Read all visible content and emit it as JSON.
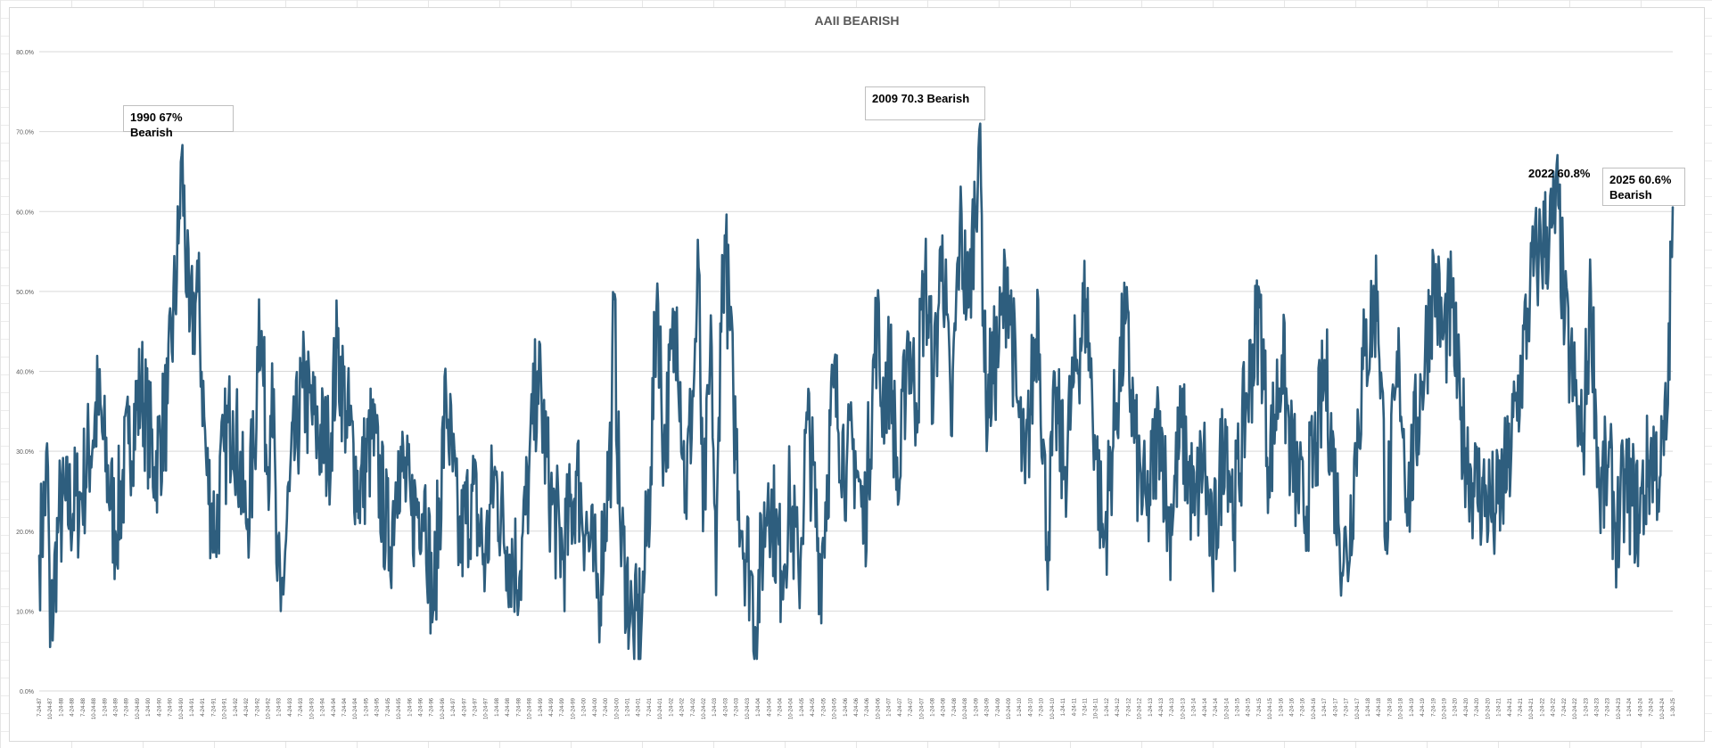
{
  "chart_data": {
    "type": "line",
    "title": "AAII BEARISH",
    "xlabel": "",
    "ylabel": "",
    "ylim": [
      0,
      80
    ],
    "y_tick_labels": [
      "0.0%",
      "10.0%",
      "20.0%",
      "30.0%",
      "40.0%",
      "50.0%",
      "60.0%",
      "70.0%",
      "80.0%"
    ],
    "x_start": "7-24-87",
    "x_end": "1-30-25",
    "x_tick_labels": [
      "7-24-87",
      "10-24-87",
      "1-24-88",
      "4-24-88",
      "7-24-88",
      "10-24-88",
      "1-24-89",
      "4-24-89",
      "7-24-89",
      "10-24-89",
      "1-24-90",
      "4-24-90",
      "7-24-90",
      "10-24-90",
      "1-24-91",
      "4-24-91",
      "7-24-91",
      "10-24-91",
      "1-24-92",
      "4-24-92",
      "7-24-92",
      "10-24-92",
      "1-24-93",
      "4-24-93",
      "7-24-93",
      "10-24-93",
      "1-24-94",
      "4-24-94",
      "7-24-94",
      "10-24-94",
      "1-24-95",
      "4-24-95",
      "7-24-95",
      "10-24-95",
      "1-24-96",
      "4-24-96",
      "7-24-96",
      "10-24-96",
      "1-24-97",
      "4-24-97",
      "7-24-97",
      "10-24-97",
      "1-24-98",
      "4-24-98",
      "7-24-98",
      "10-24-98",
      "1-24-99",
      "4-24-99",
      "7-24-99",
      "10-24-99",
      "1-24-00",
      "4-24-00",
      "7-24-00",
      "10-24-00",
      "1-24-01",
      "4-24-01",
      "7-24-01",
      "10-24-01",
      "1-24-02",
      "4-24-02",
      "7-24-02",
      "10-24-02",
      "1-24-03",
      "4-24-03",
      "7-24-03",
      "10-24-03",
      "1-24-04",
      "4-24-04",
      "7-24-04",
      "10-24-04",
      "1-24-05",
      "4-24-05",
      "7-24-05",
      "10-24-05",
      "1-24-06",
      "4-24-06",
      "7-24-06",
      "10-24-06",
      "1-24-07",
      "4-24-07",
      "7-24-07",
      "10-24-07",
      "1-24-08",
      "4-24-08",
      "7-24-08",
      "10-24-08",
      "1-24-09",
      "4-24-09",
      "7-24-09",
      "10-24-09",
      "1-24-10",
      "4-24-10",
      "7-24-10",
      "10-24-10",
      "1-24-11",
      "4-24-11",
      "7-24-11",
      "10-24-11",
      "1-24-12",
      "4-24-12",
      "7-24-12",
      "10-24-12",
      "1-24-13",
      "4-24-13",
      "7-24-13",
      "10-24-13",
      "1-24-14",
      "4-24-14",
      "7-24-14",
      "10-24-14",
      "1-24-15",
      "4-24-15",
      "7-24-15",
      "10-24-15",
      "1-24-16",
      "4-24-16",
      "7-24-16",
      "10-24-16",
      "1-24-17",
      "4-24-17",
      "7-24-17",
      "10-24-17",
      "1-24-18",
      "4-24-18",
      "7-24-18",
      "10-24-18",
      "1-24-19",
      "4-24-19",
      "7-24-19",
      "10-24-19",
      "1-24-20",
      "4-24-20",
      "7-24-20",
      "10-24-20",
      "1-24-21",
      "4-24-21",
      "7-24-21",
      "10-24-21",
      "1-24-22",
      "4-24-22",
      "7-24-22",
      "10-24-22",
      "1-24-23",
      "4-24-23",
      "7-24-23",
      "10-24-23",
      "1-24-24",
      "4-24-24",
      "7-24-24",
      "10-24-24",
      "1-30-25"
    ],
    "series": [
      {
        "color": "#2e5e7e",
        "points": [
          [
            "1987.55",
            17
          ],
          [
            "1987.75",
            28
          ],
          [
            "1987.8",
            5.5
          ],
          [
            "1988.0",
            22
          ],
          [
            "1988.5",
            24
          ],
          [
            "1988.9",
            36
          ],
          [
            "1989.3",
            20
          ],
          [
            "1989.6",
            31
          ],
          [
            "1989.9",
            38
          ],
          [
            "1990.2",
            28
          ],
          [
            "1990.5",
            36
          ],
          [
            "1990.75",
            56
          ],
          [
            "1990.82",
            67
          ],
          [
            "1991.0",
            45
          ],
          [
            "1991.2",
            50
          ],
          [
            "1991.4",
            27
          ],
          [
            "1991.6",
            20
          ],
          [
            "1991.8",
            30
          ],
          [
            "1992.0",
            35
          ],
          [
            "1992.3",
            21
          ],
          [
            "1992.5",
            30
          ],
          [
            "1992.6",
            49
          ],
          [
            "1992.8",
            28
          ],
          [
            "1992.9",
            41
          ],
          [
            "1993.0",
            16
          ],
          [
            "1993.1",
            10
          ],
          [
            "1993.3",
            25
          ],
          [
            "1993.6",
            38
          ],
          [
            "1993.9",
            33
          ],
          [
            "1994.2",
            30
          ],
          [
            "1994.4",
            43
          ],
          [
            "1994.6",
            35
          ],
          [
            "1994.9",
            25
          ],
          [
            "1995.2",
            32
          ],
          [
            "1995.6",
            18
          ],
          [
            "1995.8",
            30
          ],
          [
            "1996.1",
            22
          ],
          [
            "1996.4",
            25
          ],
          [
            "1996.6",
            10
          ],
          [
            "1996.9",
            37
          ],
          [
            "1997.2",
            18
          ],
          [
            "1997.5",
            25
          ],
          [
            "1997.8",
            16
          ],
          [
            "1998.0",
            27
          ],
          [
            "1998.3",
            18
          ],
          [
            "1998.6",
            15
          ],
          [
            "1998.8",
            27
          ],
          [
            "1999.0",
            40
          ],
          [
            "1999.3",
            24
          ],
          [
            "1999.6",
            17
          ],
          [
            "1999.9",
            27
          ],
          [
            "2000.2",
            18
          ],
          [
            "2000.4",
            12
          ],
          [
            "2000.7",
            32
          ],
          [
            "2000.75",
            49
          ],
          [
            "2000.9",
            20
          ],
          [
            "2001.2",
            7
          ],
          [
            "2001.4",
            10
          ],
          [
            "2001.6",
            28
          ],
          [
            "2001.75",
            51
          ],
          [
            "2001.9",
            30
          ],
          [
            "2002.2",
            48
          ],
          [
            "2002.4",
            24
          ],
          [
            "2002.6",
            40
          ],
          [
            "2002.7",
            53
          ],
          [
            "2002.8",
            20
          ],
          [
            "2003.0",
            43
          ],
          [
            "2003.1",
            12
          ],
          [
            "2003.2",
            46
          ],
          [
            "2003.3",
            57
          ],
          [
            "2003.5",
            36
          ],
          [
            "2003.7",
            20
          ],
          [
            "2003.9",
            15
          ],
          [
            "2004.0",
            8
          ],
          [
            "2004.3",
            26
          ],
          [
            "2004.6",
            15
          ],
          [
            "2004.8",
            24
          ],
          [
            "2005.0",
            14
          ],
          [
            "2005.2",
            34
          ],
          [
            "2005.5",
            15
          ],
          [
            "2005.8",
            38
          ],
          [
            "2006.1",
            28
          ],
          [
            "2006.3",
            30
          ],
          [
            "2006.5",
            20
          ],
          [
            "2006.8",
            47
          ],
          [
            "2006.9",
            36
          ],
          [
            "2007.1",
            41
          ],
          [
            "2007.3",
            24
          ],
          [
            "2007.5",
            45
          ],
          [
            "2007.7",
            36
          ],
          [
            "2007.9",
            52
          ],
          [
            "2008.1",
            38
          ],
          [
            "2008.3",
            57
          ],
          [
            "2008.5",
            32
          ],
          [
            "2008.7",
            58
          ],
          [
            "2008.9",
            48
          ],
          [
            "2009.15",
            70.3
          ],
          [
            "2009.3",
            36
          ],
          [
            "2009.6",
            43
          ],
          [
            "2009.8",
            53
          ],
          [
            "2010.0",
            37
          ],
          [
            "2010.2",
            26
          ],
          [
            "2010.5",
            49
          ],
          [
            "2010.7",
            18
          ],
          [
            "2010.9",
            36
          ],
          [
            "2011.1",
            27
          ],
          [
            "2011.3",
            38
          ],
          [
            "2011.6",
            49
          ],
          [
            "2011.8",
            32
          ],
          [
            "2012.0",
            18
          ],
          [
            "2012.3",
            36
          ],
          [
            "2012.5",
            46
          ],
          [
            "2012.8",
            27
          ],
          [
            "2013.0",
            22
          ],
          [
            "2013.3",
            35
          ],
          [
            "2013.5",
            20
          ],
          [
            "2013.8",
            33
          ],
          [
            "2014.1",
            22
          ],
          [
            "2014.3",
            30
          ],
          [
            "2014.5",
            16
          ],
          [
            "2014.8",
            34
          ],
          [
            "2015.0",
            22
          ],
          [
            "2015.3",
            37
          ],
          [
            "2015.6",
            48
          ],
          [
            "2015.8",
            28
          ],
          [
            "2016.1",
            42
          ],
          [
            "2016.3",
            30
          ],
          [
            "2016.6",
            22
          ],
          [
            "2016.9",
            31
          ],
          [
            "2017.1",
            40
          ],
          [
            "2017.4",
            21
          ],
          [
            "2017.6",
            16
          ],
          [
            "2017.8",
            31
          ],
          [
            "2018.0",
            42
          ],
          [
            "2018.3",
            50
          ],
          [
            "2018.5",
            21
          ],
          [
            "2018.8",
            41
          ],
          [
            "2019.0",
            24
          ],
          [
            "2019.3",
            38
          ],
          [
            "2019.6",
            52
          ],
          [
            "2019.8",
            44
          ],
          [
            "2020.0",
            48
          ],
          [
            "2020.2",
            34
          ],
          [
            "2020.5",
            26
          ],
          [
            "2020.8",
            24
          ],
          [
            "2021.0",
            22
          ],
          [
            "2021.3",
            28
          ],
          [
            "2021.6",
            40
          ],
          [
            "2021.8",
            50
          ],
          [
            "2022.0",
            55
          ],
          [
            "2022.3",
            58
          ],
          [
            "2022.45",
            60.8
          ],
          [
            "2022.6",
            46
          ],
          [
            "2022.8",
            38
          ],
          [
            "2023.0",
            30
          ],
          [
            "2023.2",
            50
          ],
          [
            "2023.4",
            24
          ],
          [
            "2023.6",
            28
          ],
          [
            "2023.8",
            20
          ],
          [
            "2024.0",
            26
          ],
          [
            "2024.3",
            22
          ],
          [
            "2024.6",
            30
          ],
          [
            "2024.8",
            27
          ],
          [
            "2024.95",
            34
          ],
          [
            "2025.08",
            60.6
          ]
        ]
      }
    ],
    "annotations": [
      {
        "text": "1990 67% Bearish"
      },
      {
        "text": "2009 70.3 Bearish"
      },
      {
        "text": "2022 60.8%"
      },
      {
        "text": "2025 60.6% Bearish"
      }
    ]
  }
}
